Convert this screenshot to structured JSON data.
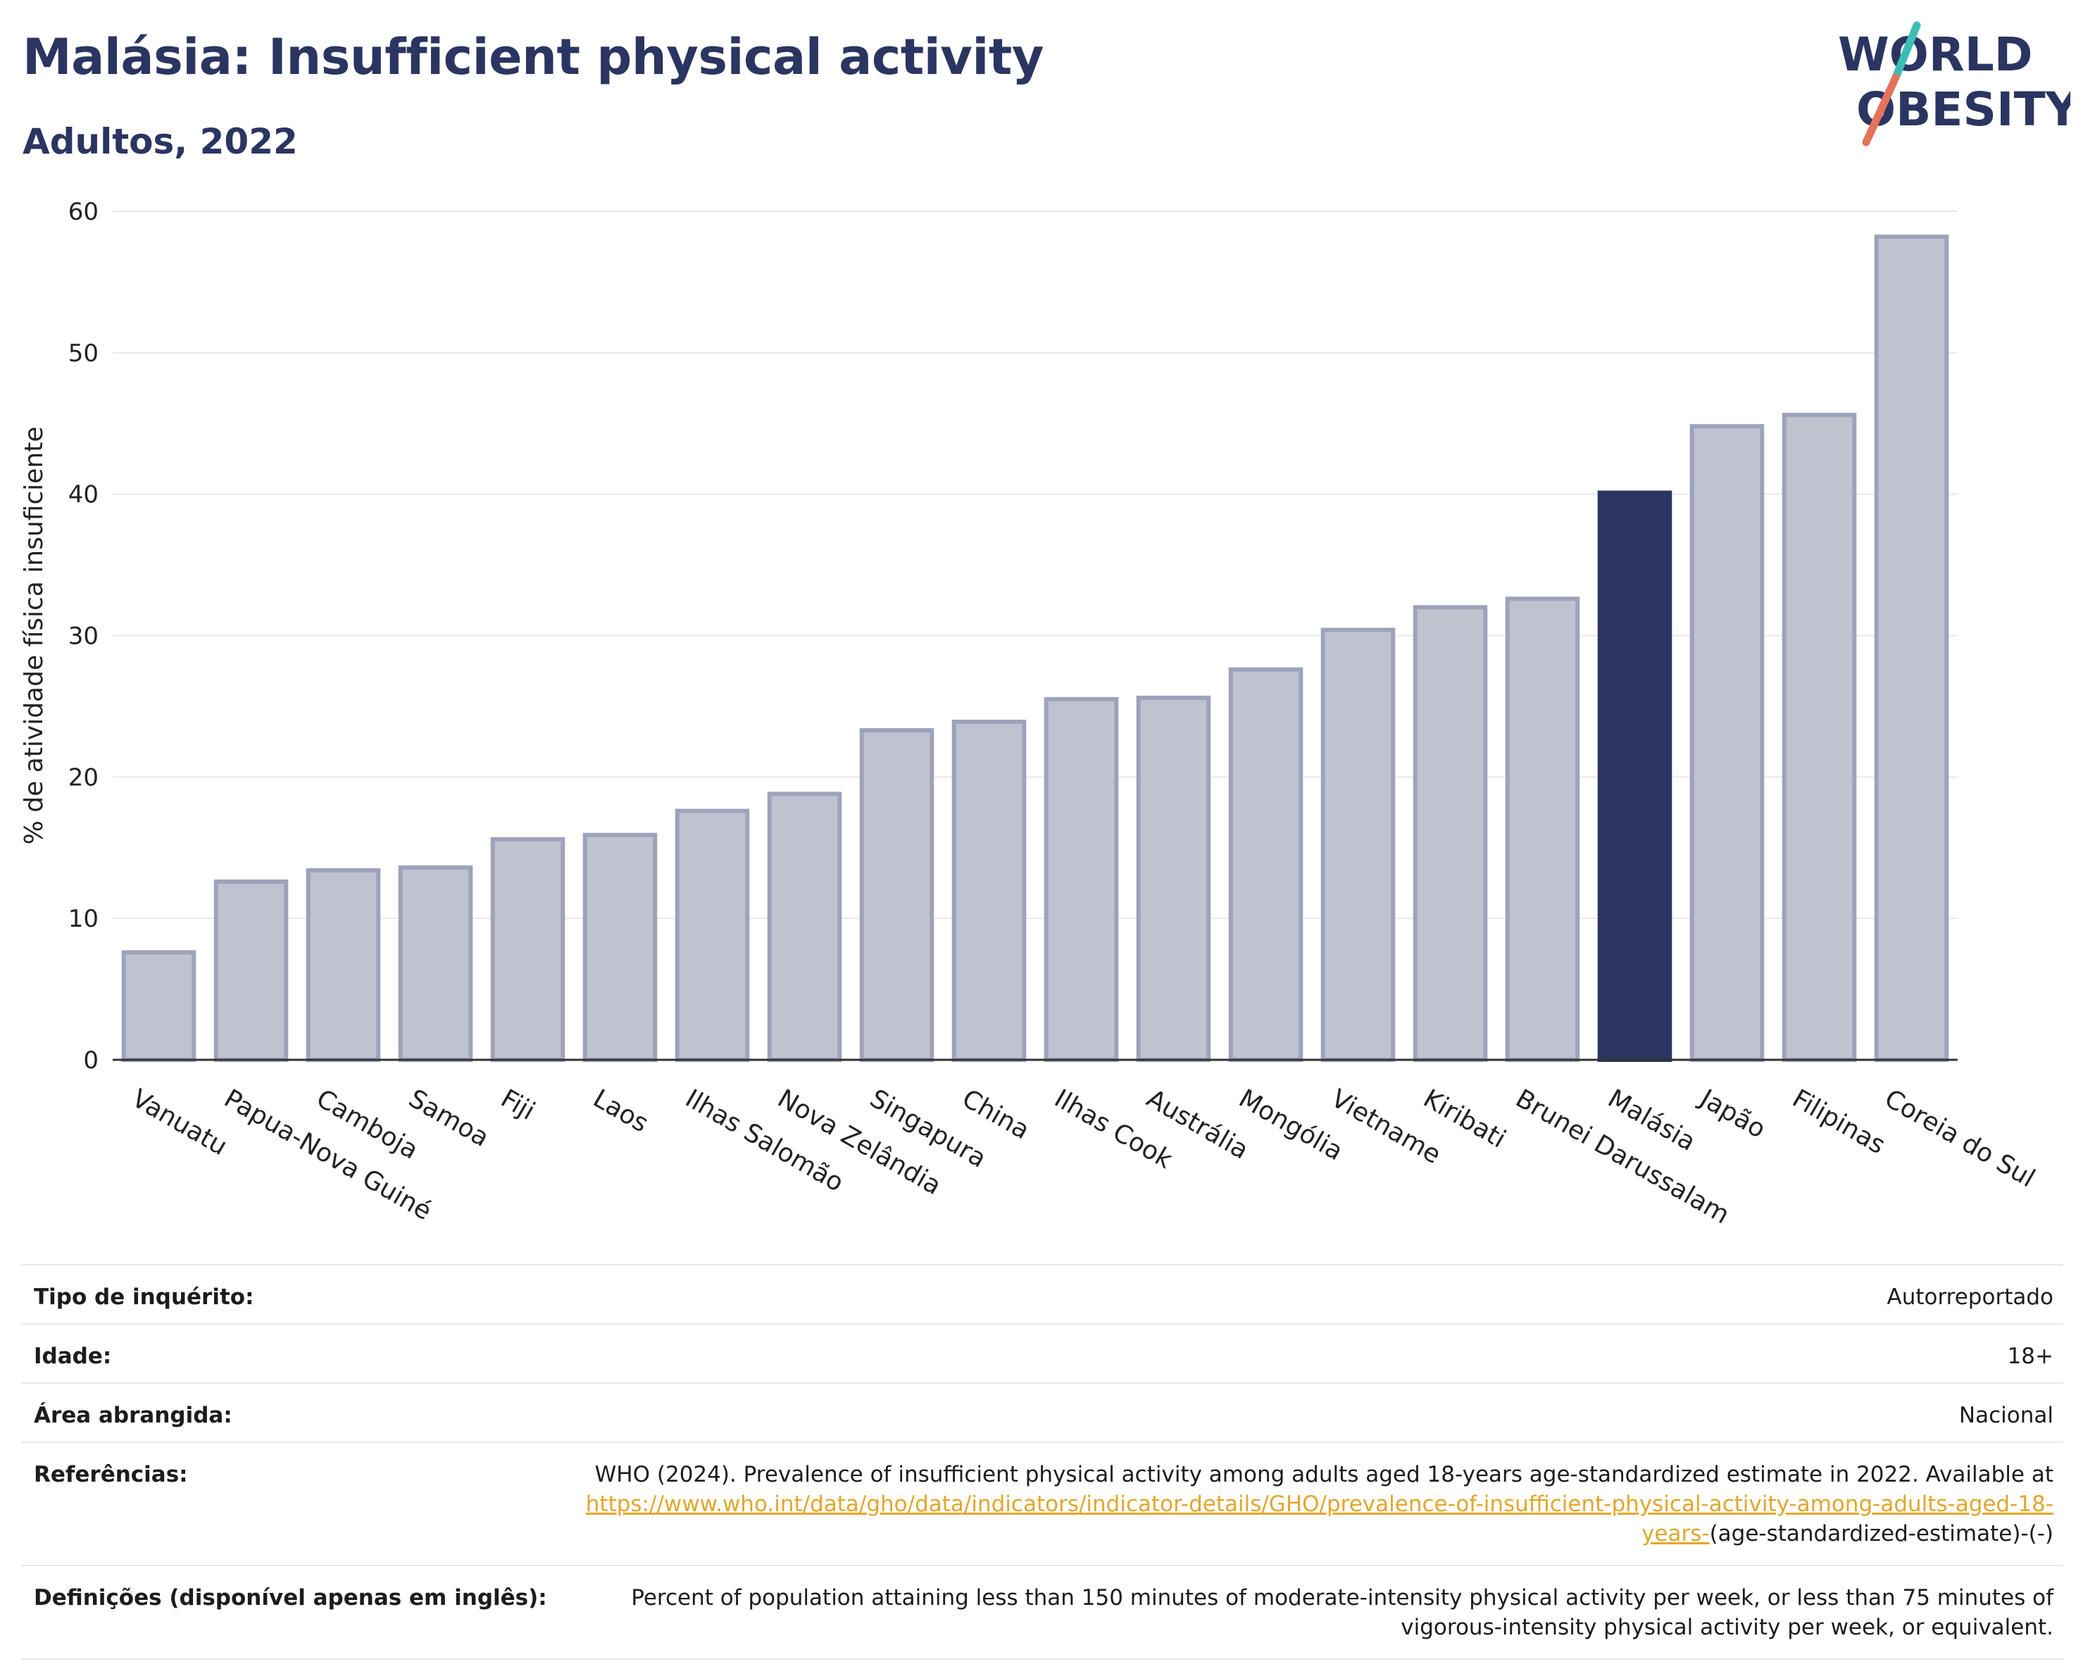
{
  "title": "Malásia: Insufficient physical activity",
  "subtitle": "Adultos, 2022",
  "logo": {
    "line1": "WORLD",
    "line2": "OBESITY"
  },
  "colors": {
    "title": "#2b3561",
    "highlight": "#2b3561",
    "bar": "#bfc2cf",
    "bar_border": "#9ea2ba",
    "link": "#e3a62b"
  },
  "chart_data": {
    "type": "bar",
    "ylabel": "% de atividade física insuficiente",
    "xlabel": "",
    "ylim": [
      0,
      60
    ],
    "yticks": [
      0,
      10,
      20,
      30,
      40,
      50,
      60
    ],
    "grid": true,
    "highlight": "Malásia",
    "categories": [
      "Vanuatu",
      "Papua-Nova Guiné",
      "Camboja",
      "Samoa",
      "Fiji",
      "Laos",
      "Ilhas Salomão",
      "Nova Zelândia",
      "Singapura",
      "China",
      "Ilhas Cook",
      "Austrália",
      "Mongólia",
      "Vietname",
      "Kiribati",
      "Brunei Darussalam",
      "Malásia",
      "Japão",
      "Filipinas",
      "Coreia do Sul"
    ],
    "values": [
      7.6,
      12.6,
      13.4,
      13.6,
      15.6,
      15.9,
      17.6,
      18.8,
      23.3,
      23.9,
      25.5,
      25.6,
      27.6,
      30.4,
      32.0,
      32.6,
      40.1,
      44.8,
      45.6,
      58.2
    ]
  },
  "info": {
    "survey_type": {
      "label": "Tipo de inquérito:",
      "value": "Autorreportado"
    },
    "age": {
      "label": "Idade:",
      "value": "18+"
    },
    "area": {
      "label": "Área abrangida:",
      "value": "Nacional"
    },
    "references": {
      "label": "Referências:",
      "text": "WHO (2024). Prevalence of insufficient physical activity among adults aged 18-years age-standardized estimate in 2022. Available at",
      "link": "https://www.who.int/data/gho/data/indicators/indicator-details/GHO/prevalence-of-insufficient-physical-activity-among-adults-aged-18-years-",
      "suffix": "(age-standardized-estimate)-(-)"
    },
    "definitions": {
      "label": "Definições (disponível apenas em inglês):",
      "value": "Percent of population attaining less than 150 minutes of moderate-intensity physical activity per week, or less than 75 minutes of vigorous-intensity physical activity per week, or equivalent."
    }
  }
}
